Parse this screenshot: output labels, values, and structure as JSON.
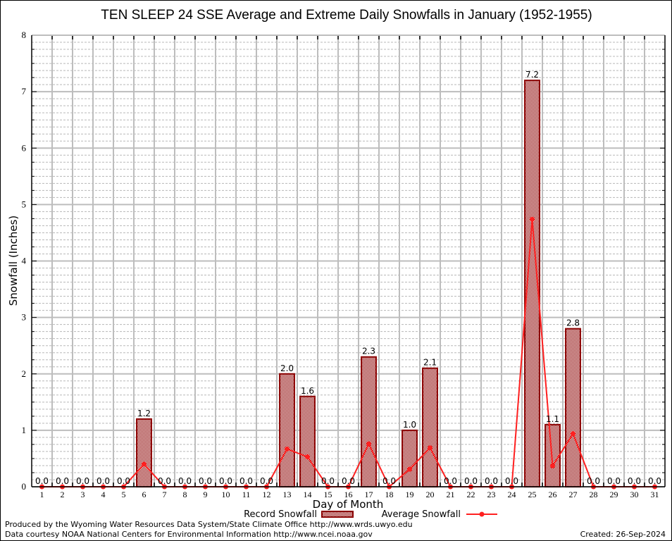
{
  "chart_data": {
    "type": "bar",
    "title": "TEN SLEEP 24 SSE Average and Extreme Daily Snowfalls in January (1952-1955)",
    "xlabel": "Day of Month",
    "ylabel": "Snowfall (Inches)",
    "ylim": [
      0,
      8
    ],
    "yticks": [
      0,
      1,
      2,
      3,
      4,
      5,
      6,
      7,
      8
    ],
    "grid": true,
    "categories": [
      "1",
      "2",
      "3",
      "4",
      "5",
      "6",
      "7",
      "8",
      "9",
      "10",
      "11",
      "12",
      "13",
      "14",
      "15",
      "16",
      "17",
      "18",
      "19",
      "20",
      "21",
      "22",
      "23",
      "24",
      "25",
      "26",
      "27",
      "28",
      "29",
      "30",
      "31"
    ],
    "series": [
      {
        "name": "Record Snowfall",
        "type": "bar",
        "color": "#8b0000",
        "values": [
          0.0,
          0.0,
          0.0,
          0.0,
          0.0,
          1.2,
          0.0,
          0.0,
          0.0,
          0.0,
          0.0,
          0.0,
          2.0,
          1.6,
          0.0,
          0.0,
          2.3,
          0.0,
          1.0,
          2.1,
          0.0,
          0.0,
          0.0,
          0.0,
          7.2,
          1.1,
          2.8,
          0.0,
          0.0,
          0.0,
          0.0
        ],
        "labels": [
          "0.0",
          "0.0",
          "0.0",
          "0.0",
          "0.0",
          "1.2",
          "0.0",
          "0.0",
          "0.0",
          "0.0",
          "0.0",
          "0.0",
          "2.0",
          "1.6",
          "0.0",
          "0.0",
          "2.3",
          "0.0",
          "1.0",
          "2.1",
          "0.0",
          "0.0",
          "0.0",
          "0.0",
          "7.2",
          "1.1",
          "2.8",
          "0.0",
          "0.0",
          "0.0",
          "0.0"
        ]
      },
      {
        "name": "Average Snowfall",
        "type": "line",
        "color": "#ff2020",
        "values": [
          0,
          0,
          0,
          0,
          0,
          0.4,
          0,
          0,
          0,
          0,
          0,
          0,
          0.67,
          0.53,
          0,
          0,
          0.76,
          0,
          0.31,
          0.69,
          0,
          0,
          0,
          0,
          4.74,
          0.37,
          0.94,
          0,
          0,
          0,
          0
        ]
      }
    ],
    "legend": {
      "placement": "bottom-center",
      "entries": [
        "Record Snowfall",
        "Average Snowfall"
      ]
    }
  },
  "footer": {
    "produced_by": "Produced by the Wyoming Water Resources Data System/State Climate Office http://www.wrds.uwyo.edu",
    "data_courtesy": "Data courtesy NOAA National Centers for Environmental Information http://www.ncei.noaa.gov",
    "created": "Created:  26-Sep-2024"
  }
}
